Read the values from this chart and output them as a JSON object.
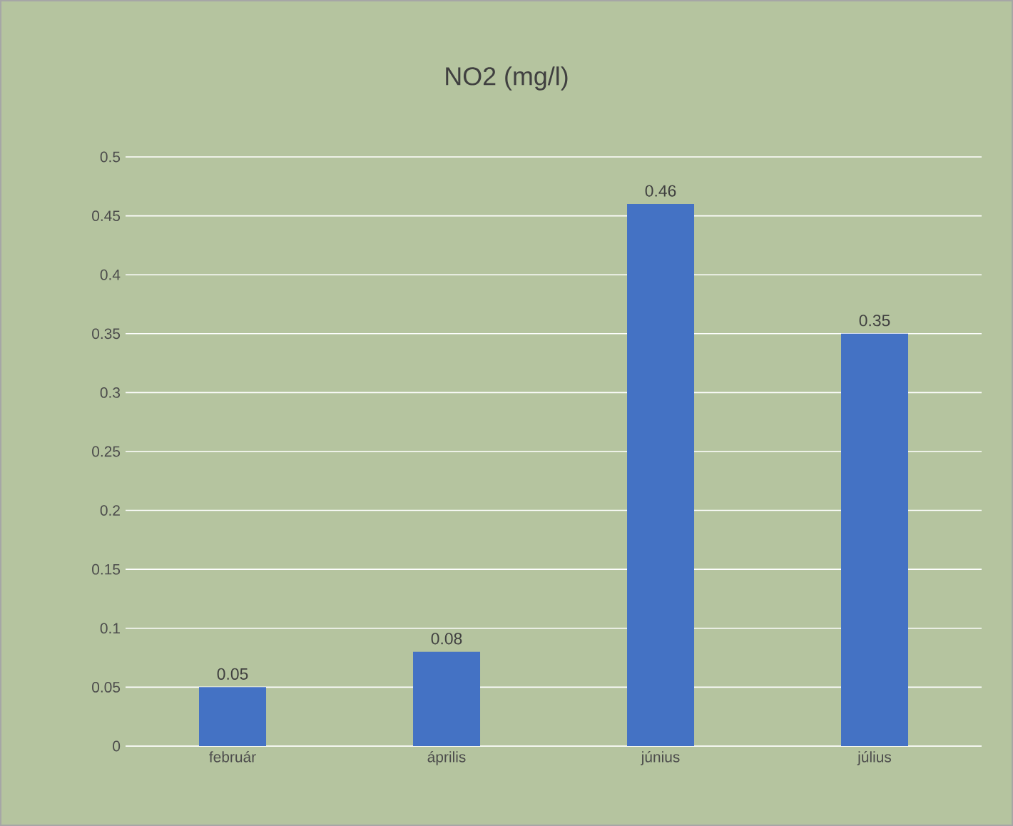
{
  "chart_data": {
    "type": "bar",
    "title": "NO2 (mg/l)",
    "categories": [
      "február",
      "április",
      "június",
      "július"
    ],
    "values": [
      0.05,
      0.08,
      0.46,
      0.35
    ],
    "color": "#4472c4",
    "ylim": [
      0,
      0.5
    ],
    "yticks": [
      0,
      0.05,
      0.1,
      0.15,
      0.2,
      0.25,
      0.3,
      0.35,
      0.4,
      0.45,
      0.5
    ],
    "grid": "y",
    "data_labels": true
  }
}
